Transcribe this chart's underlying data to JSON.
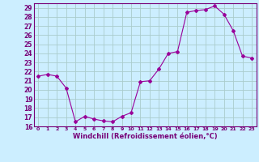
{
  "x": [
    0,
    1,
    2,
    3,
    4,
    5,
    6,
    7,
    8,
    9,
    10,
    11,
    12,
    13,
    14,
    15,
    16,
    17,
    18,
    19,
    20,
    21,
    22,
    23
  ],
  "y": [
    21.5,
    21.7,
    21.5,
    20.2,
    16.5,
    17.1,
    16.8,
    16.6,
    16.5,
    17.1,
    17.5,
    20.9,
    21.0,
    22.3,
    24.0,
    24.2,
    28.5,
    28.7,
    28.8,
    29.2,
    28.3,
    26.5,
    23.7,
    23.5
  ],
  "line_color": "#990099",
  "marker": "D",
  "marker_size": 2,
  "xlim": [
    -0.5,
    23.5
  ],
  "ylim": [
    16,
    29.5
  ],
  "yticks": [
    16,
    17,
    18,
    19,
    20,
    21,
    22,
    23,
    24,
    25,
    26,
    27,
    28,
    29
  ],
  "xticks": [
    0,
    1,
    2,
    3,
    4,
    5,
    6,
    7,
    8,
    9,
    10,
    11,
    12,
    13,
    14,
    15,
    16,
    17,
    18,
    19,
    20,
    21,
    22,
    23
  ],
  "xlabel": "Windchill (Refroidissement éolien,°C)",
  "bg_color": "#cceeff",
  "grid_color": "#aacccc",
  "tick_color": "#770077",
  "label_color": "#770077",
  "spine_color": "#770077"
}
